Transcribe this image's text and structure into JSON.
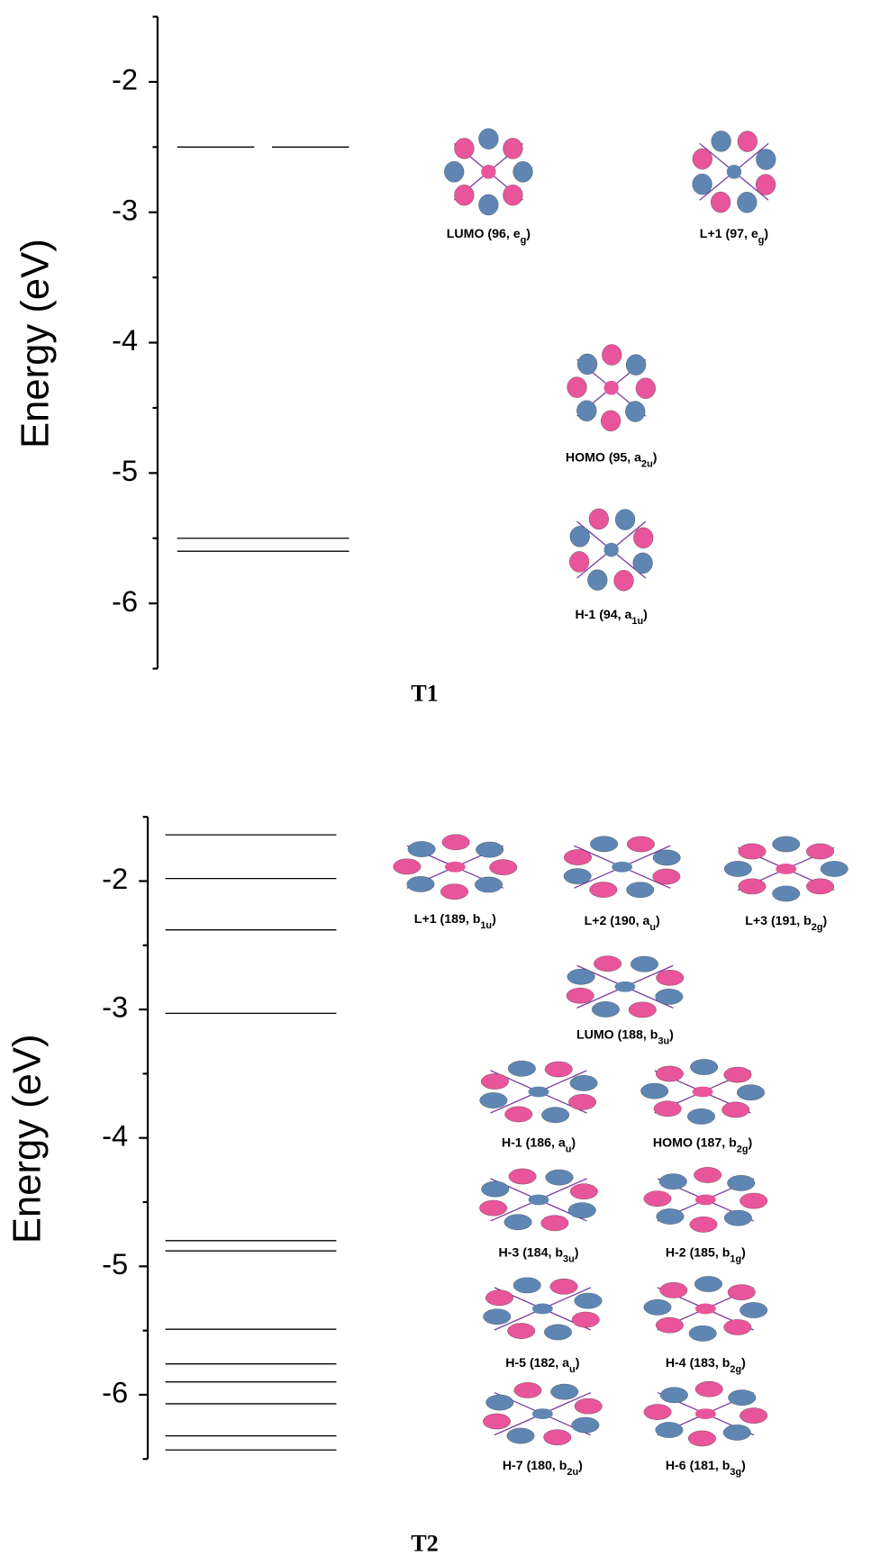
{
  "chart_data": [
    {
      "type": "energy-level",
      "title": "T1",
      "y_label": "Energy (eV)",
      "ylim": [
        -6.5,
        -1.5
      ],
      "yticks": [
        -6,
        -5,
        -4,
        -3,
        -2
      ],
      "minor_yticks": [
        -6.5,
        -5.5,
        -4.5,
        -3.5,
        -2.5,
        -1.5
      ],
      "color": "#000000",
      "levels": [
        {
          "label": "LUMO (96, e",
          "sub": "g",
          "end": ")",
          "energy": -2.5
        },
        {
          "label": "L+1 (97,  e",
          "sub": "g",
          "end": ")",
          "energy": -2.5
        },
        {
          "label": "HOMO (95, a",
          "sub": "2u",
          "end": ")",
          "energy": -5.5
        },
        {
          "label": "H-1 (94, a",
          "sub": "1u",
          "end": ")",
          "energy": -5.6
        }
      ]
    },
    {
      "type": "energy-level",
      "title": "T2",
      "y_label": "Energy (eV)",
      "ylim": [
        -6.5,
        -1.5
      ],
      "yticks": [
        -6,
        -5,
        -4,
        -3,
        -2
      ],
      "minor_yticks": [
        -6.5,
        -5.5,
        -4.5,
        -3.5,
        -2.5,
        -1.5
      ],
      "color": "#000000",
      "levels": [
        {
          "label": "L+3 (191, b",
          "sub": "2g",
          "end": ")",
          "energy": -1.64
        },
        {
          "label": "L+2 (190, a",
          "sub": "u",
          "end": ")",
          "energy": -1.98
        },
        {
          "label": "L+1 (189, b",
          "sub": "1u",
          "end": ")",
          "energy": -2.38
        },
        {
          "label": "LUMO (188, b",
          "sub": "3u",
          "end": ")",
          "energy": -3.03
        },
        {
          "label": "HOMO (187, b",
          "sub": "2g",
          "end": ")",
          "energy": -4.8
        },
        {
          "label": "H-1 (186, a",
          "sub": "u",
          "end": ")",
          "energy": -4.88
        },
        {
          "label": "H-2 (185, b",
          "sub": "1g",
          "end": ")",
          "energy": -5.49
        },
        {
          "label": "H-3 (184, b",
          "sub": "3u",
          "end": ")",
          "energy": -5.76
        },
        {
          "label": "H-4 (183, b",
          "sub": "2g",
          "end": ")",
          "energy": -5.9
        },
        {
          "label": "H-5 (182, a",
          "sub": "u",
          "end": ")",
          "energy": -6.07
        },
        {
          "label": "H-6 (181, b",
          "sub": "3g",
          "end": ")",
          "energy": -6.32
        },
        {
          "label": "H-7 (180, b",
          "sub": "2u",
          "end": ")",
          "energy": -6.43
        }
      ]
    }
  ]
}
